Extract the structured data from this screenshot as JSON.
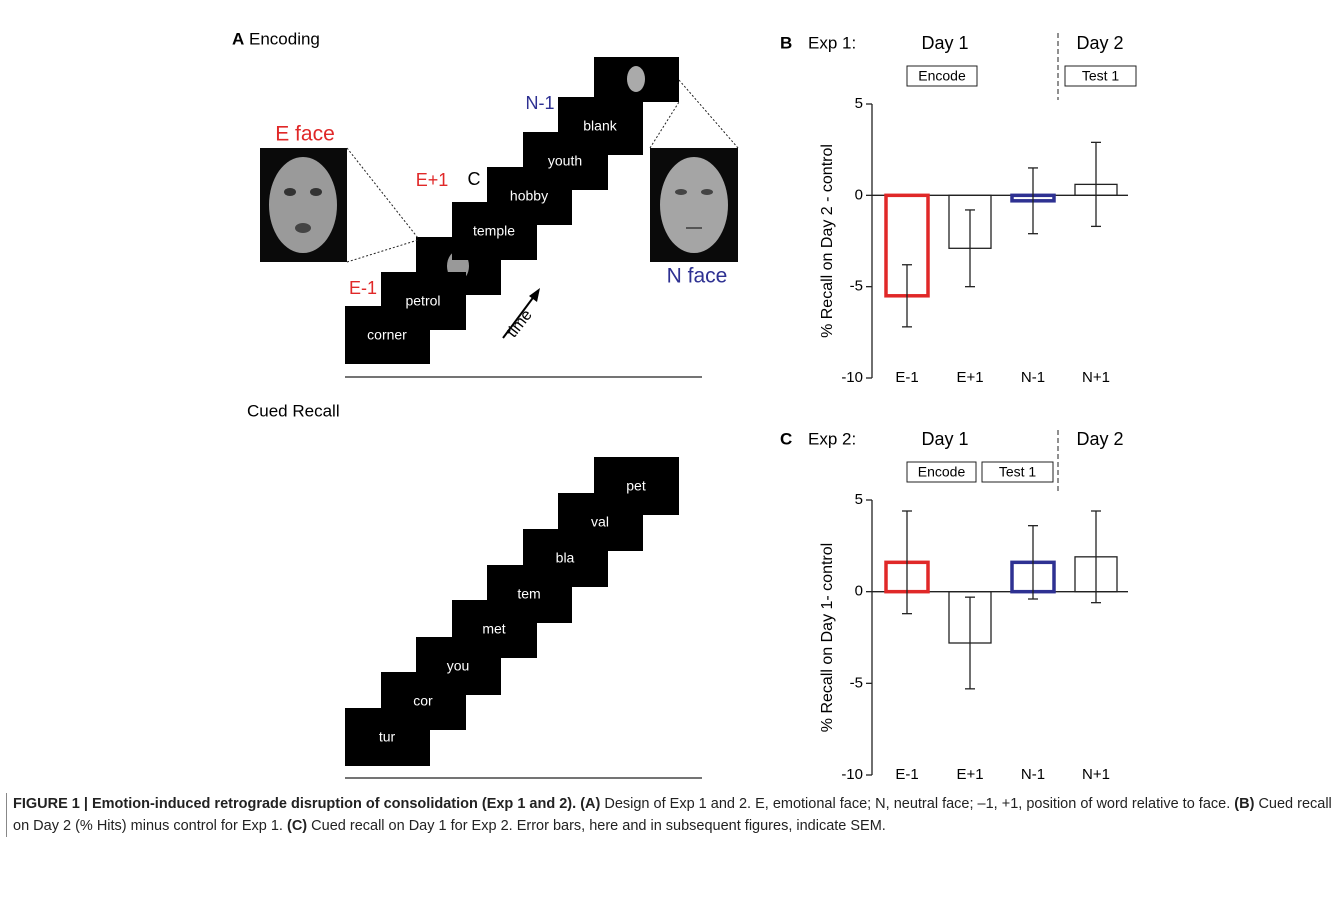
{
  "panel_a": {
    "letter": "A",
    "title": "Encoding",
    "labels": {
      "e_face": "E face",
      "e_plus": "E+1",
      "e_minus": "E-1",
      "c": "C",
      "n_minus": "N-1",
      "n_face": "N face",
      "time": "time"
    },
    "encoding_words": [
      "corner",
      "petrol",
      "temple",
      "hobby",
      "youth",
      "blank"
    ],
    "recall_title": "Cued Recall",
    "recall_words": [
      "tur",
      "cor",
      "you",
      "met",
      "tem",
      "bla",
      "val",
      "pet"
    ]
  },
  "chart_data": [
    {
      "type": "bar",
      "panel": "B",
      "title": "Exp 1:",
      "day_labels": [
        "Day 1",
        "Day 2"
      ],
      "phase_labels": [
        "Encode",
        "Test 1"
      ],
      "ylabel": "% Recall on Day 2 - control",
      "categories": [
        "E-1",
        "E+1",
        "N-1",
        "N+1"
      ],
      "values": [
        -5.5,
        -2.9,
        -0.3,
        0.6
      ],
      "errors": [
        1.7,
        2.1,
        1.8,
        2.3
      ],
      "colors": [
        "#e02828",
        "#222222",
        "#2e3192",
        "#222222"
      ],
      "ylim": [
        -10,
        5
      ],
      "yticks": [
        -10,
        -5,
        0,
        5
      ]
    },
    {
      "type": "bar",
      "panel": "C",
      "title": "Exp 2:",
      "day_labels": [
        "Day 1",
        "Day 2"
      ],
      "phase_labels": [
        "Encode",
        "Test 1"
      ],
      "ylabel": "% Recall on Day 1- control",
      "categories": [
        "E-1",
        "E+1",
        "N-1",
        "N+1"
      ],
      "values": [
        1.6,
        -2.8,
        1.6,
        1.9
      ],
      "errors": [
        2.8,
        2.5,
        2.0,
        2.5
      ],
      "colors": [
        "#e02828",
        "#222222",
        "#2e3192",
        "#222222"
      ],
      "ylim": [
        -10,
        5
      ],
      "yticks": [
        -10,
        -5,
        0,
        5
      ]
    }
  ],
  "caption": {
    "title": "FIGURE 1 | Emotion-induced retrograde disruption of consolidation (Exp 1 and 2).",
    "a_label": "(A)",
    "a_text": "Design of Exp 1 and 2. E, emotional face; N, neutral face; –1, +1, position of word relative to face.",
    "b_label": "(B)",
    "b_text": "Cued recall on Day 2 (% Hits) minus control for Exp 1.",
    "c_label": "(C)",
    "c_text": "Cued recall on Day 1 for Exp 2. Error bars, here and in subsequent figures, indicate SEM."
  }
}
